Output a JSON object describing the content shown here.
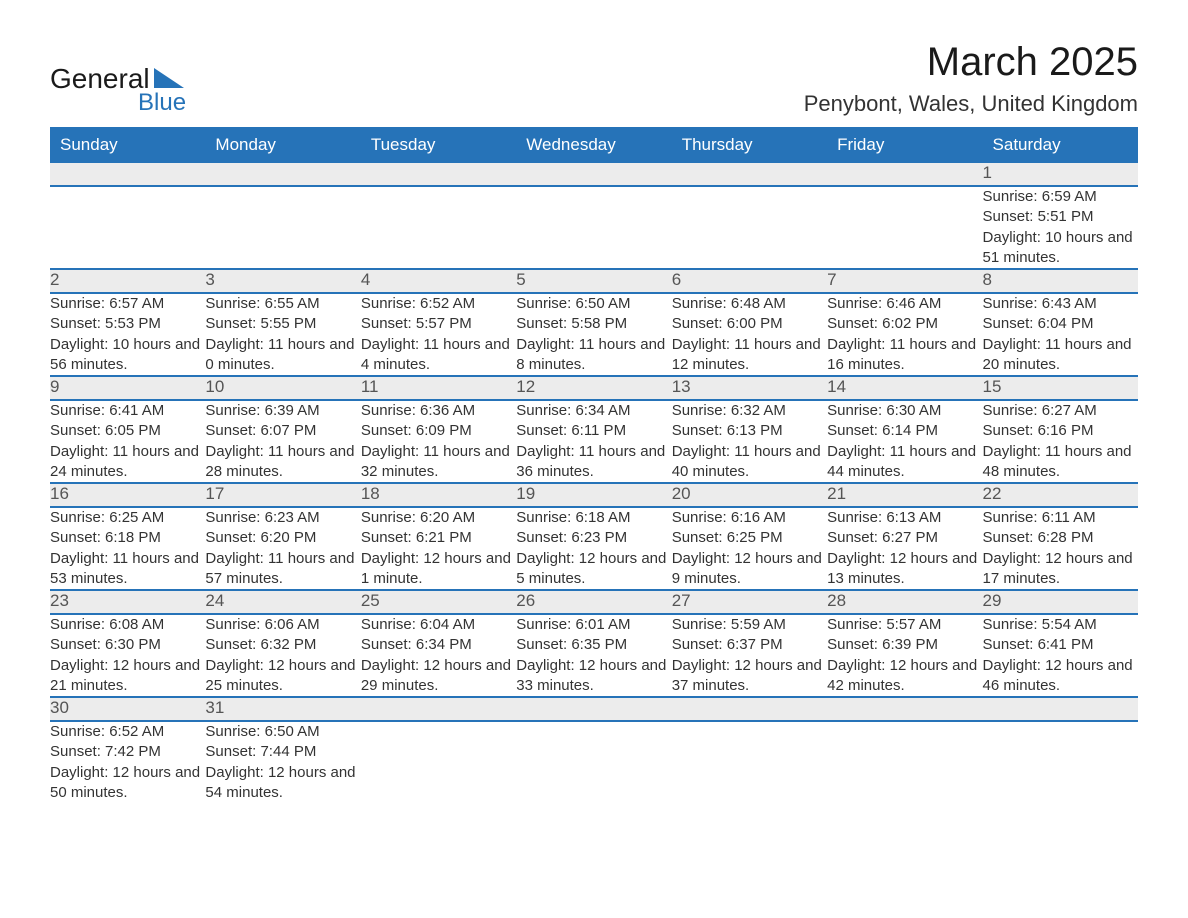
{
  "logo": {
    "main": "General",
    "sub": "Blue",
    "tri_color": "#2673b8"
  },
  "title": "March 2025",
  "location": "Penybont, Wales, United Kingdom",
  "colors": {
    "header_bg": "#2673b8",
    "header_fg": "#ffffff",
    "daynum_bg": "#ececec",
    "rule": "#2673b8",
    "text": "#333333"
  },
  "weekday_labels": [
    "Sunday",
    "Monday",
    "Tuesday",
    "Wednesday",
    "Thursday",
    "Friday",
    "Saturday"
  ],
  "labels": {
    "sunrise": "Sunrise: ",
    "sunset": "Sunset: ",
    "daylight": "Daylight: "
  },
  "weeks": [
    [
      null,
      null,
      null,
      null,
      null,
      null,
      {
        "n": "1",
        "sunrise": "6:59 AM",
        "sunset": "5:51 PM",
        "daylight": "10 hours and 51 minutes."
      }
    ],
    [
      {
        "n": "2",
        "sunrise": "6:57 AM",
        "sunset": "5:53 PM",
        "daylight": "10 hours and 56 minutes."
      },
      {
        "n": "3",
        "sunrise": "6:55 AM",
        "sunset": "5:55 PM",
        "daylight": "11 hours and 0 minutes."
      },
      {
        "n": "4",
        "sunrise": "6:52 AM",
        "sunset": "5:57 PM",
        "daylight": "11 hours and 4 minutes."
      },
      {
        "n": "5",
        "sunrise": "6:50 AM",
        "sunset": "5:58 PM",
        "daylight": "11 hours and 8 minutes."
      },
      {
        "n": "6",
        "sunrise": "6:48 AM",
        "sunset": "6:00 PM",
        "daylight": "11 hours and 12 minutes."
      },
      {
        "n": "7",
        "sunrise": "6:46 AM",
        "sunset": "6:02 PM",
        "daylight": "11 hours and 16 minutes."
      },
      {
        "n": "8",
        "sunrise": "6:43 AM",
        "sunset": "6:04 PM",
        "daylight": "11 hours and 20 minutes."
      }
    ],
    [
      {
        "n": "9",
        "sunrise": "6:41 AM",
        "sunset": "6:05 PM",
        "daylight": "11 hours and 24 minutes."
      },
      {
        "n": "10",
        "sunrise": "6:39 AM",
        "sunset": "6:07 PM",
        "daylight": "11 hours and 28 minutes."
      },
      {
        "n": "11",
        "sunrise": "6:36 AM",
        "sunset": "6:09 PM",
        "daylight": "11 hours and 32 minutes."
      },
      {
        "n": "12",
        "sunrise": "6:34 AM",
        "sunset": "6:11 PM",
        "daylight": "11 hours and 36 minutes."
      },
      {
        "n": "13",
        "sunrise": "6:32 AM",
        "sunset": "6:13 PM",
        "daylight": "11 hours and 40 minutes."
      },
      {
        "n": "14",
        "sunrise": "6:30 AM",
        "sunset": "6:14 PM",
        "daylight": "11 hours and 44 minutes."
      },
      {
        "n": "15",
        "sunrise": "6:27 AM",
        "sunset": "6:16 PM",
        "daylight": "11 hours and 48 minutes."
      }
    ],
    [
      {
        "n": "16",
        "sunrise": "6:25 AM",
        "sunset": "6:18 PM",
        "daylight": "11 hours and 53 minutes."
      },
      {
        "n": "17",
        "sunrise": "6:23 AM",
        "sunset": "6:20 PM",
        "daylight": "11 hours and 57 minutes."
      },
      {
        "n": "18",
        "sunrise": "6:20 AM",
        "sunset": "6:21 PM",
        "daylight": "12 hours and 1 minute."
      },
      {
        "n": "19",
        "sunrise": "6:18 AM",
        "sunset": "6:23 PM",
        "daylight": "12 hours and 5 minutes."
      },
      {
        "n": "20",
        "sunrise": "6:16 AM",
        "sunset": "6:25 PM",
        "daylight": "12 hours and 9 minutes."
      },
      {
        "n": "21",
        "sunrise": "6:13 AM",
        "sunset": "6:27 PM",
        "daylight": "12 hours and 13 minutes."
      },
      {
        "n": "22",
        "sunrise": "6:11 AM",
        "sunset": "6:28 PM",
        "daylight": "12 hours and 17 minutes."
      }
    ],
    [
      {
        "n": "23",
        "sunrise": "6:08 AM",
        "sunset": "6:30 PM",
        "daylight": "12 hours and 21 minutes."
      },
      {
        "n": "24",
        "sunrise": "6:06 AM",
        "sunset": "6:32 PM",
        "daylight": "12 hours and 25 minutes."
      },
      {
        "n": "25",
        "sunrise": "6:04 AM",
        "sunset": "6:34 PM",
        "daylight": "12 hours and 29 minutes."
      },
      {
        "n": "26",
        "sunrise": "6:01 AM",
        "sunset": "6:35 PM",
        "daylight": "12 hours and 33 minutes."
      },
      {
        "n": "27",
        "sunrise": "5:59 AM",
        "sunset": "6:37 PM",
        "daylight": "12 hours and 37 minutes."
      },
      {
        "n": "28",
        "sunrise": "5:57 AM",
        "sunset": "6:39 PM",
        "daylight": "12 hours and 42 minutes."
      },
      {
        "n": "29",
        "sunrise": "5:54 AM",
        "sunset": "6:41 PM",
        "daylight": "12 hours and 46 minutes."
      }
    ],
    [
      {
        "n": "30",
        "sunrise": "6:52 AM",
        "sunset": "7:42 PM",
        "daylight": "12 hours and 50 minutes."
      },
      {
        "n": "31",
        "sunrise": "6:50 AM",
        "sunset": "7:44 PM",
        "daylight": "12 hours and 54 minutes."
      },
      null,
      null,
      null,
      null,
      null
    ]
  ]
}
